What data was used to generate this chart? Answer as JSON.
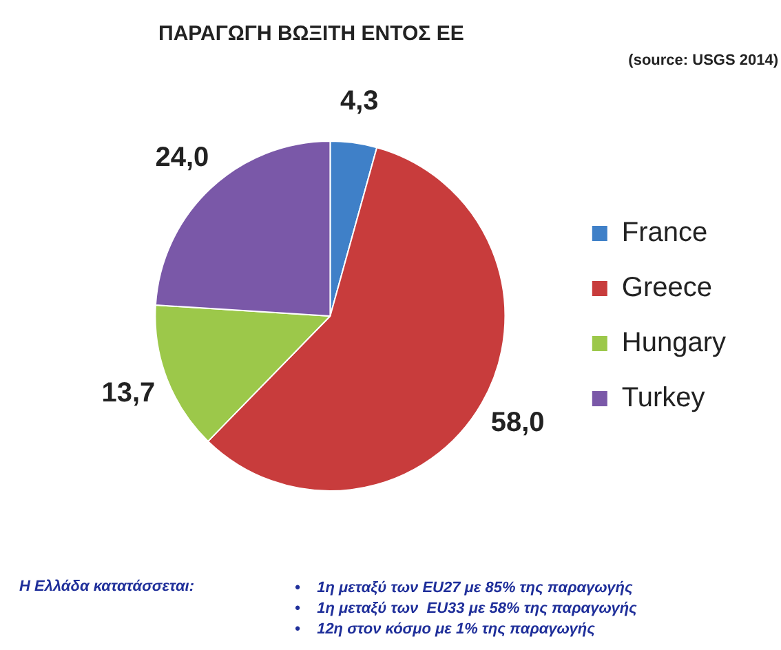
{
  "chart_data": {
    "type": "pie",
    "title": "ΠΑΡΑΓΩΓΗ ΒΩΞΙΤΗ ΕΝΤΟΣ ΕΕ",
    "categories": [
      "France",
      "Greece",
      "Hungary",
      "Turkey"
    ],
    "values": [
      4.3,
      58.0,
      13.7,
      24.0
    ],
    "value_labels": [
      "4,3",
      "58,0",
      "13,7",
      "24,0"
    ],
    "colors": [
      "#3f80c8",
      "#c83c3c",
      "#9cc84a",
      "#7a58a8"
    ],
    "legend": "right",
    "annotations": [
      "(source: USGS 2014)",
      "Η Ελλάδα κατατάσσεται:",
      "•    1η μεταξύ των EU27 με 85% της παραγωγής",
      "•    1η μεταξύ των  EU33 με 58% της παραγωγής",
      "•    12η στον κόσμο με 1% της παραγωγής"
    ]
  }
}
